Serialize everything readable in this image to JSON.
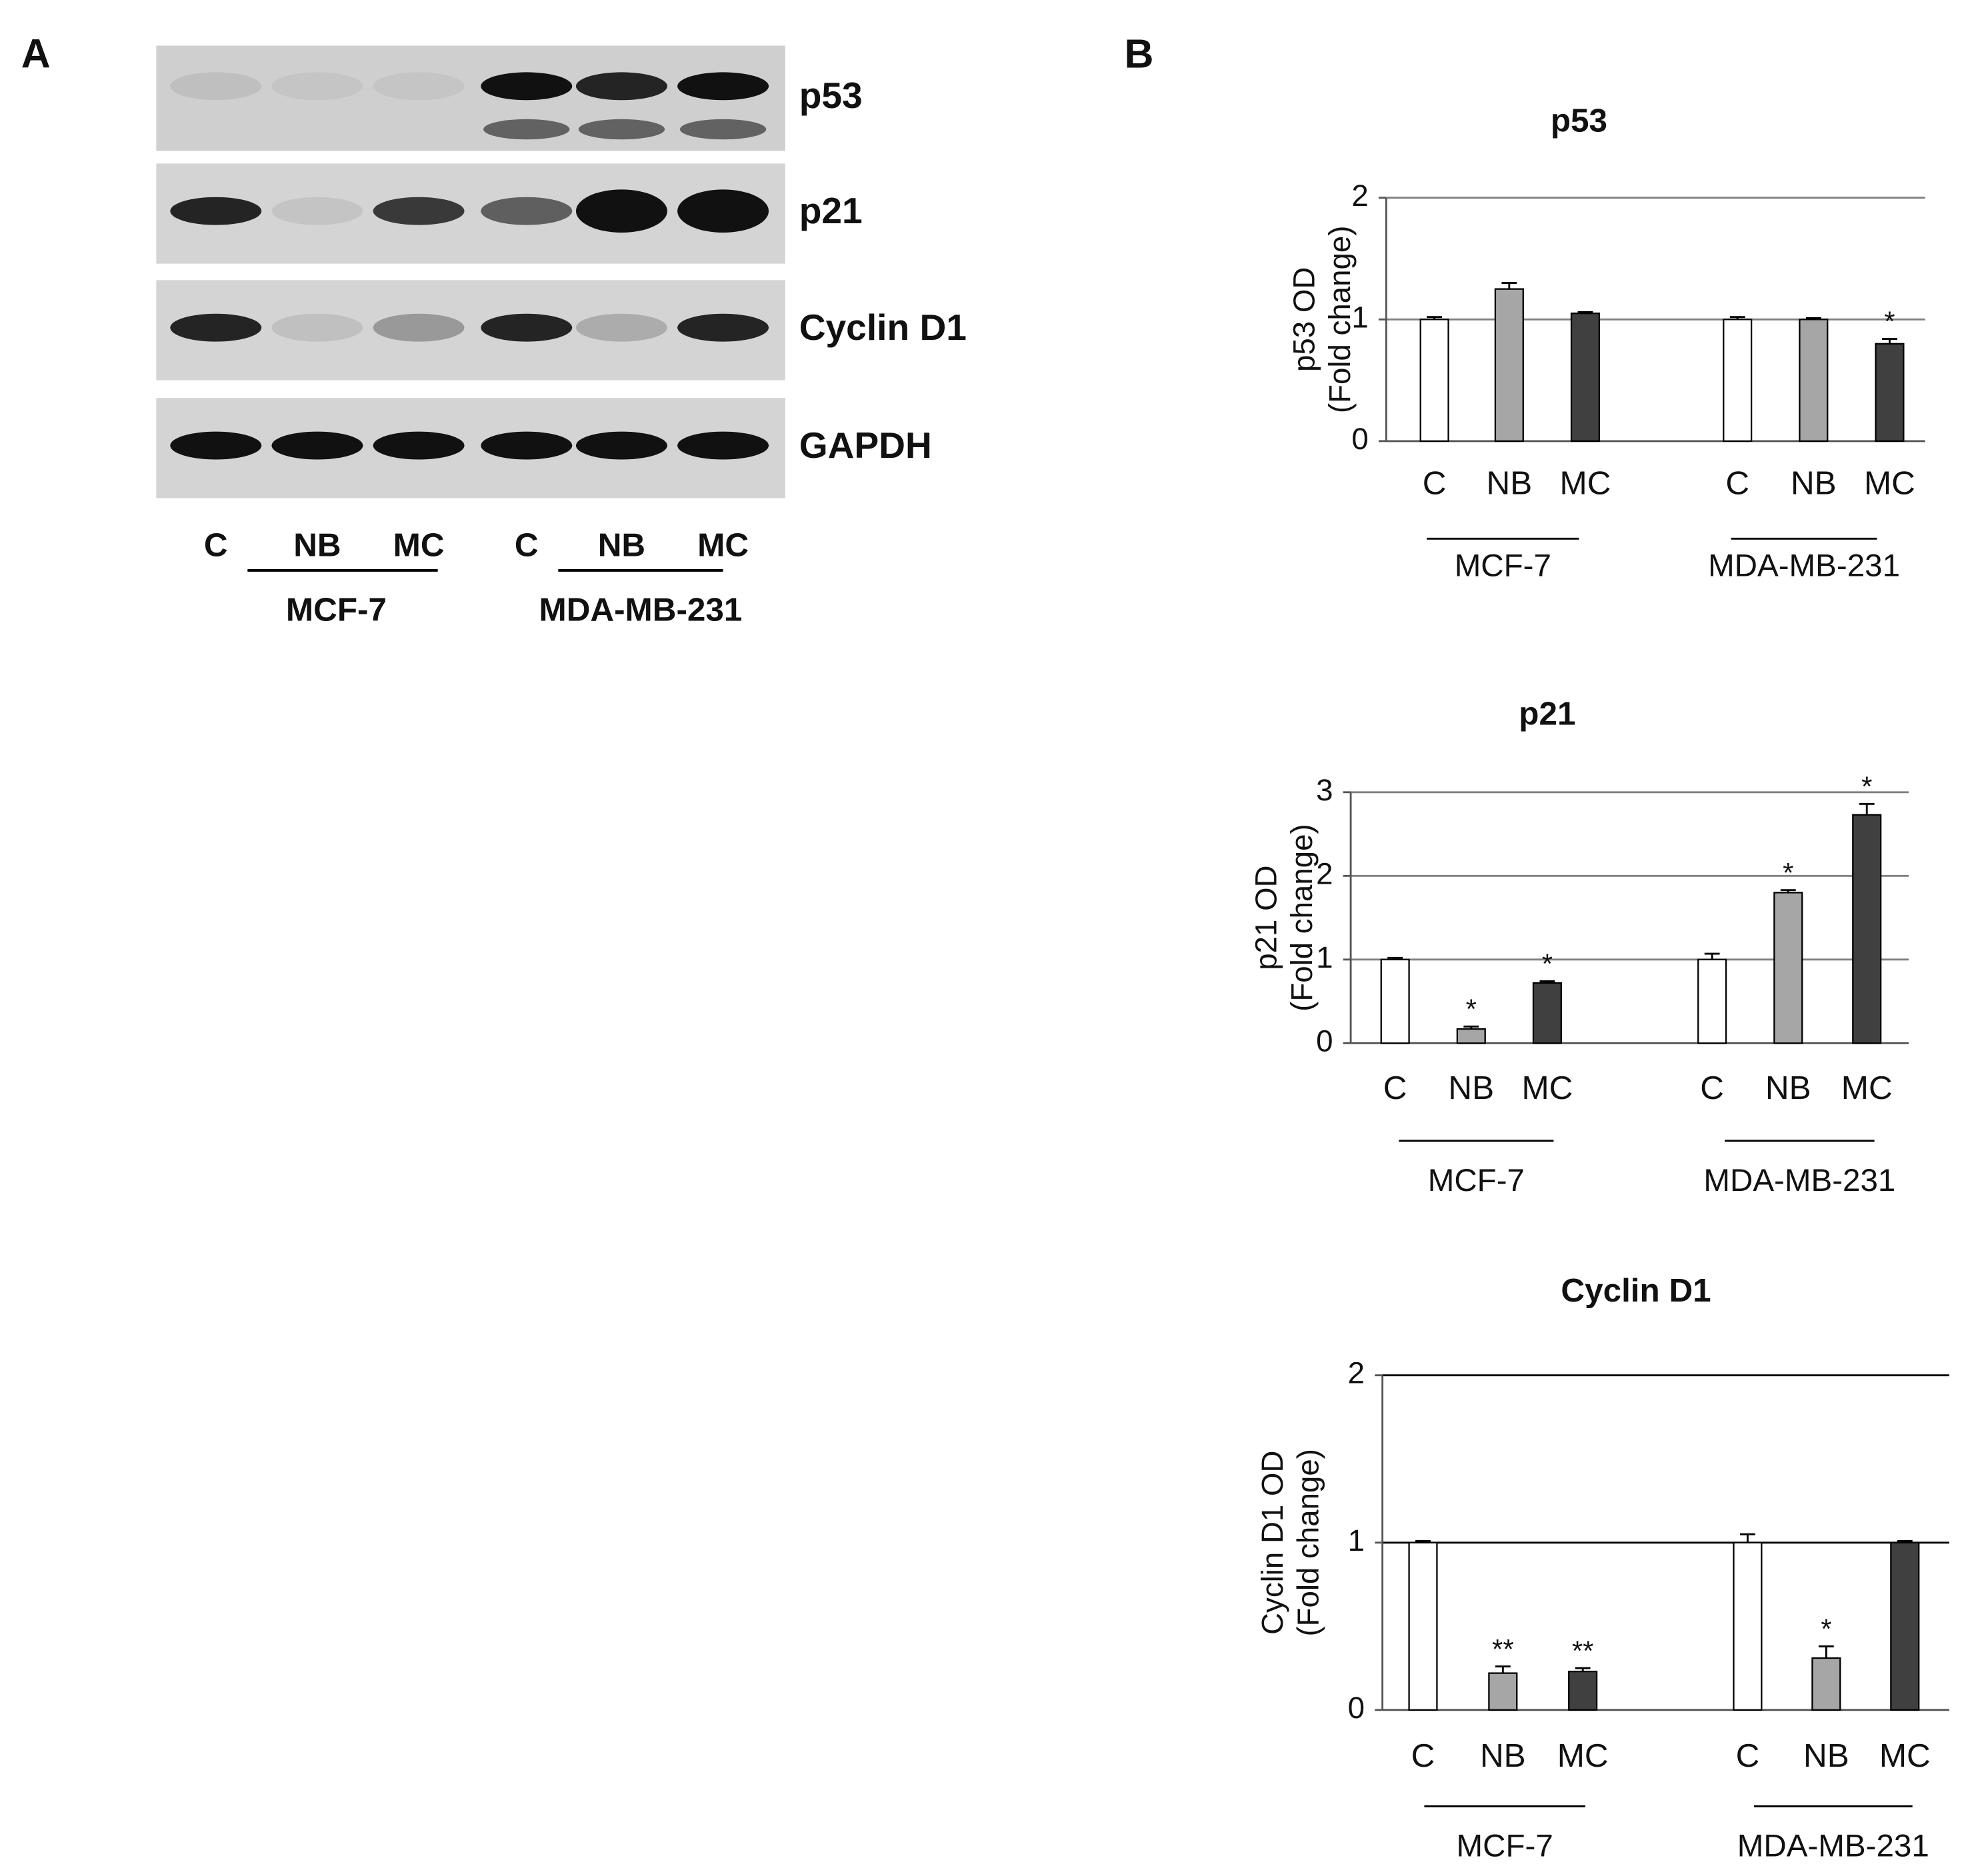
{
  "panel_labels": [
    "A",
    "B"
  ],
  "blot": {
    "proteins": [
      "p53",
      "p21",
      "Cyclin D1",
      "GAPDH"
    ],
    "lanes": [
      "C",
      "NB",
      "MC",
      "C",
      "NB",
      "MC"
    ],
    "groups": [
      "MCF-7",
      "MDA-MB-231"
    ]
  },
  "chart_data": [
    {
      "type": "bar",
      "title": "p53",
      "y_label": [
        "p53 OD",
        "(Fold change)"
      ],
      "categories": [
        "C",
        "NB",
        "MC",
        "C",
        "NB",
        "MC"
      ],
      "groups": [
        "MCF-7",
        "MDA-MB-231"
      ],
      "values": [
        1.0,
        1.25,
        1.05,
        1.0,
        1.0,
        0.8
      ],
      "errors": [
        0.02,
        0.05,
        0.01,
        0.02,
        0.01,
        0.04
      ],
      "colors": [
        "#ffffff",
        "#a6a6a6",
        "#404040",
        "#ffffff",
        "#a6a6a6",
        "#404040"
      ],
      "annotations": [
        null,
        null,
        null,
        null,
        null,
        "*"
      ],
      "ylim": [
        0,
        2
      ],
      "yticks": [
        0,
        1,
        2
      ],
      "grid": true,
      "grid_color": "#808080"
    },
    {
      "type": "bar",
      "title": "p21",
      "y_label": [
        "p21 OD",
        "(Fold change)"
      ],
      "categories": [
        "C",
        "NB",
        "MC",
        "C",
        "NB",
        "MC"
      ],
      "groups": [
        "MCF-7",
        "MDA-MB-231"
      ],
      "values": [
        1.0,
        0.17,
        0.72,
        1.0,
        1.8,
        2.73
      ],
      "errors": [
        0.02,
        0.03,
        0.02,
        0.07,
        0.03,
        0.13
      ],
      "colors": [
        "#ffffff",
        "#a6a6a6",
        "#404040",
        "#ffffff",
        "#a6a6a6",
        "#404040"
      ],
      "annotations": [
        null,
        "*",
        "*",
        null,
        "*",
        "*"
      ],
      "ylim": [
        0,
        3
      ],
      "yticks": [
        0,
        1,
        2,
        3
      ],
      "grid": true,
      "grid_color": "#808080"
    },
    {
      "type": "bar",
      "title": "Cyclin D1",
      "y_label": [
        "Cyclin D1 OD",
        "(Fold change)"
      ],
      "categories": [
        "C",
        "NB",
        "MC",
        "C",
        "NB",
        "MC"
      ],
      "groups": [
        "MCF-7",
        "MDA-MB-231"
      ],
      "values": [
        1.0,
        0.22,
        0.23,
        1.0,
        0.31,
        1.0
      ],
      "errors": [
        0.01,
        0.04,
        0.02,
        0.05,
        0.07,
        0.01
      ],
      "colors": [
        "#ffffff",
        "#a6a6a6",
        "#404040",
        "#ffffff",
        "#a6a6a6",
        "#404040"
      ],
      "annotations": [
        null,
        "**",
        "**",
        null,
        "*",
        null
      ],
      "ylim": [
        0,
        2
      ],
      "yticks": [
        0,
        1,
        2
      ],
      "grid": true,
      "grid_color": "#000000"
    }
  ]
}
